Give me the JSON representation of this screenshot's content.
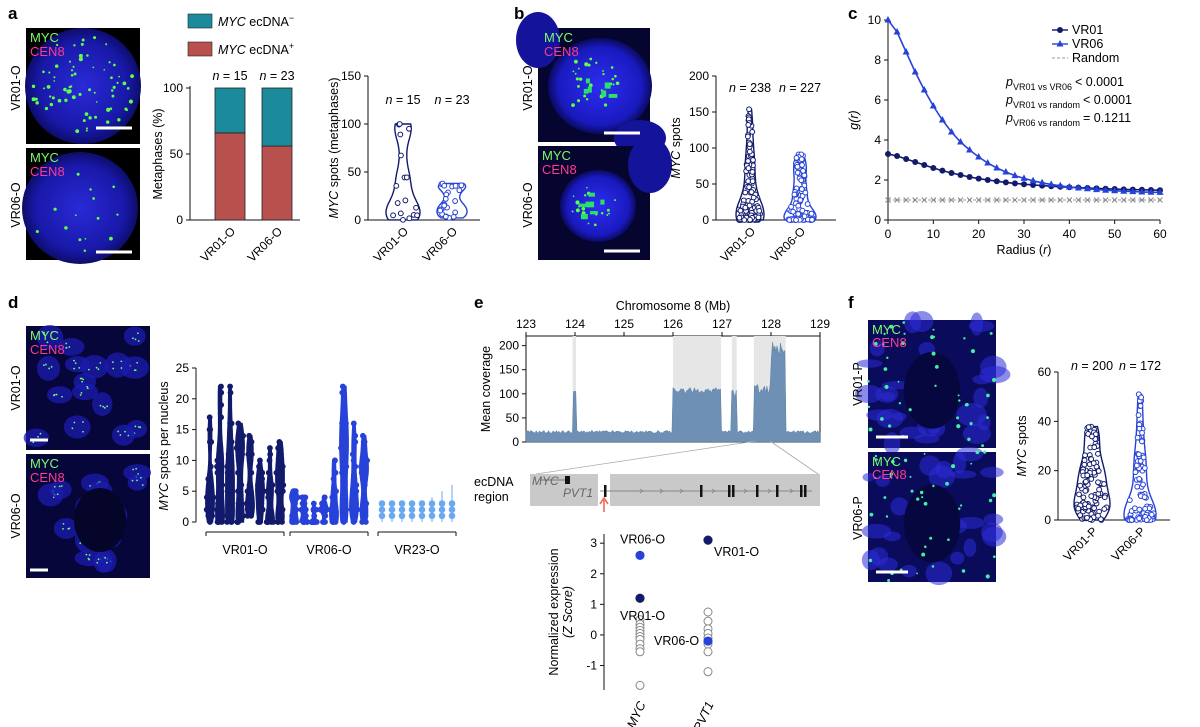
{
  "panels": {
    "a": "a",
    "b": "b",
    "c": "c",
    "d": "d",
    "e": "e",
    "f": "f"
  },
  "micro_labels": {
    "myc": "MYC",
    "cen8": "CEN8"
  },
  "samples": {
    "vr01o": "VR01-O",
    "vr06o": "VR06-O",
    "vr23o": "VR23-O",
    "vr01p": "VR01-P",
    "vr06p": "VR06-P"
  },
  "panel_a": {
    "legend": {
      "neg_gene": "MYC",
      "neg_rest": " ecDNA",
      "neg_sup": "−",
      "pos_gene": "MYC",
      "pos_rest": " ecDNA",
      "pos_sup": "+"
    },
    "colors": {
      "neg": "#1b8b9b",
      "pos": "#b8504e"
    },
    "bar_ylabel": "Metaphases (%)",
    "violin_ylabel_gene": "MYC",
    "violin_ylabel_rest": " spots (metaphases)",
    "n_labels": [
      "n = 15",
      "n = 23"
    ],
    "n_italic": "n",
    "n_values": [
      "= 15",
      "= 23"
    ]
  },
  "panel_b": {
    "ylabel_gene": "MYC",
    "ylabel_rest": " spots",
    "n_values": [
      "= 238",
      "= 227"
    ]
  },
  "panel_c": {
    "legend": [
      "VR01",
      "VR06",
      "Random"
    ],
    "pvals": [
      {
        "sub": "VR01 vs VR06",
        "val": "< 0.0001"
      },
      {
        "sub": "VR01 vs random",
        "val": "< 0.0001"
      },
      {
        "sub": "VR06 vs random",
        "val": "= 0.1211"
      }
    ],
    "p": "p",
    "ylabel": "g(r)",
    "xlabel": "Radius (",
    "xlabel_r": "r",
    "xlabel_end": ")"
  },
  "panel_d": {
    "ylabel_gene": "MYC",
    "ylabel_rest": " spots per nucleus"
  },
  "panel_e": {
    "title": "Chromosome 8 (Mb)",
    "ylabel": "Mean coverage",
    "ecdna_label_1": "ecDNA",
    "ecdna_label_2": "region",
    "gene_myc": "MYC",
    "gene_pvt1": "PVT1",
    "expr_ylabel_1": "Normalized expression",
    "expr_ylabel_2": "(Z Score)",
    "point_labels": {
      "vr06_myc": "VR06-O",
      "vr01_myc": "VR01-O",
      "vr01_pvt1": "VR01-O",
      "vr06_pvt1": "VR06-O"
    }
  },
  "panel_f": {
    "ylabel_gene": "MYC",
    "ylabel_rest": " spots",
    "n_values": [
      "= 200",
      "= 172"
    ]
  },
  "chart_data": [
    {
      "id": "a-bar",
      "type": "bar",
      "stacked": true,
      "categories": [
        "VR01-O",
        "VR06-O"
      ],
      "series": [
        {
          "name": "MYC ecDNA+",
          "values": [
            66,
            56
          ]
        },
        {
          "name": "MYC ecDNA−",
          "values": [
            34,
            44
          ]
        }
      ],
      "ylabel": "Metaphases (%)",
      "ylim": [
        0,
        100
      ],
      "yticks": [
        0,
        50,
        100
      ]
    },
    {
      "id": "a-violin",
      "type": "scatter",
      "categories": [
        "VR01-O",
        "VR06-O"
      ],
      "n": [
        15,
        23
      ],
      "ylabel": "MYC spots (metaphases)",
      "ylim": [
        0,
        150
      ],
      "yticks": [
        0,
        50,
        100,
        150
      ]
    },
    {
      "id": "b-violin",
      "type": "scatter",
      "categories": [
        "VR01-O",
        "VR06-O"
      ],
      "n": [
        238,
        227
      ],
      "ylabel": "MYC spots",
      "ylim": [
        0,
        200
      ],
      "yticks": [
        0,
        50,
        100,
        150,
        200
      ]
    },
    {
      "id": "c-line",
      "type": "line",
      "x": [
        0,
        2,
        4,
        6,
        8,
        10,
        12,
        14,
        16,
        18,
        20,
        22,
        24,
        26,
        28,
        30,
        32,
        34,
        36,
        38,
        40,
        42,
        44,
        46,
        48,
        50,
        52,
        54,
        56,
        58,
        60
      ],
      "series": [
        {
          "name": "VR01",
          "values": [
            3.3,
            3.2,
            3.05,
            2.9,
            2.75,
            2.6,
            2.47,
            2.35,
            2.25,
            2.15,
            2.07,
            2.0,
            1.94,
            1.88,
            1.83,
            1.79,
            1.75,
            1.72,
            1.69,
            1.66,
            1.64,
            1.62,
            1.6,
            1.58,
            1.56,
            1.55,
            1.53,
            1.52,
            1.51,
            1.5,
            1.49
          ]
        },
        {
          "name": "VR06",
          "values": [
            10.0,
            9.4,
            8.4,
            7.4,
            6.5,
            5.7,
            5.0,
            4.4,
            3.9,
            3.5,
            3.15,
            2.85,
            2.6,
            2.4,
            2.22,
            2.08,
            1.96,
            1.86,
            1.78,
            1.71,
            1.65,
            1.6,
            1.56,
            1.52,
            1.49,
            1.46,
            1.44,
            1.42,
            1.4,
            1.39,
            1.38
          ]
        },
        {
          "name": "Random",
          "values": [
            1,
            1,
            1,
            1,
            1,
            1,
            1,
            1,
            1,
            1,
            1,
            1,
            1,
            1,
            1,
            1,
            1,
            1,
            1,
            1,
            1,
            1,
            1,
            1,
            1,
            1,
            1,
            1,
            1,
            1,
            1
          ]
        }
      ],
      "xlabel": "Radius (r)",
      "ylabel": "g(r)",
      "xlim": [
        0,
        60
      ],
      "ylim": [
        0,
        10
      ],
      "xticks": [
        0,
        10,
        20,
        30,
        40,
        50,
        60
      ],
      "yticks": [
        0,
        2,
        4,
        6,
        8,
        10
      ],
      "legend": "top-right"
    },
    {
      "id": "d-violin",
      "type": "scatter",
      "groups": [
        "VR01-O",
        "VR06-O",
        "VR23-O"
      ],
      "ylabel": "MYC spots per nucleus",
      "ylim": [
        0,
        25
      ],
      "yticks": [
        0,
        5,
        10,
        15,
        20,
        25
      ]
    },
    {
      "id": "e-coverage",
      "type": "area",
      "title": "Chromosome 8 (Mb)",
      "xlim": [
        123,
        129
      ],
      "ylim": [
        0,
        220
      ],
      "xticks": [
        123,
        124,
        125,
        126,
        127,
        128,
        129
      ],
      "yticks": [
        0,
        50,
        100,
        150,
        200
      ],
      "ylabel": "Mean coverage"
    },
    {
      "id": "e-expression",
      "type": "scatter",
      "categories": [
        "MYC",
        "PVT1"
      ],
      "ylabel": "Normalized expression (Z Score)",
      "ylim": [
        -1.8,
        3.3
      ],
      "yticks": [
        -1,
        0,
        1,
        2,
        3
      ],
      "points": [
        {
          "cat": "MYC",
          "y": 2.6,
          "label": "VR06-O",
          "color": "#2742d8"
        },
        {
          "cat": "MYC",
          "y": 1.2,
          "label": "VR01-O",
          "color": "#121a6b"
        },
        {
          "cat": "PVT1",
          "y": 3.1,
          "label": "VR01-O",
          "color": "#121a6b"
        },
        {
          "cat": "PVT1",
          "y": -0.2,
          "label": "VR06-O",
          "color": "#2742d8"
        }
      ],
      "others": {
        "MYC": [
          0.5,
          0.35,
          0.25,
          0.15,
          0.05,
          -0.05,
          -0.15,
          -0.3,
          -0.45,
          -0.55,
          -1.65
        ],
        "PVT1": [
          0.75,
          0.45,
          0.2,
          0.05,
          -0.1,
          -0.3,
          -0.55,
          -1.2
        ]
      }
    },
    {
      "id": "f-violin",
      "type": "scatter",
      "categories": [
        "VR01-P",
        "VR06-P"
      ],
      "n": [
        200,
        172
      ],
      "ylabel": "MYC spots",
      "ylim": [
        0,
        60
      ],
      "yticks": [
        0,
        20,
        40,
        60
      ]
    }
  ]
}
